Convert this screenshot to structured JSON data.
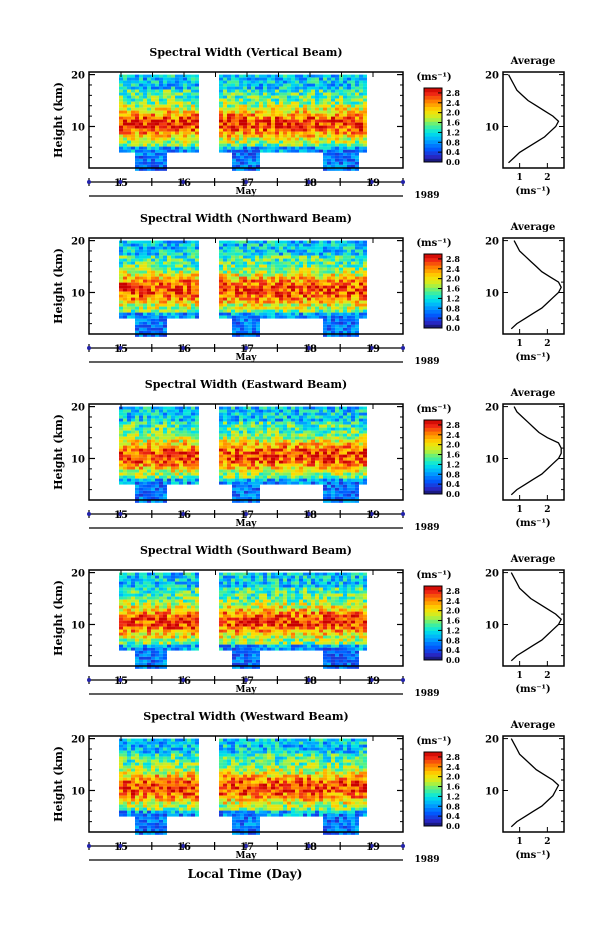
{
  "figure": {
    "xlabel": "Local Time (Day)",
    "cbar_unit": "(ms⁻¹)",
    "avg_unit": "(ms⁻¹)",
    "avg_title": "Average",
    "month": "May",
    "year": "1989"
  },
  "chart_data": [
    {
      "type": "heatmap",
      "title": "Spectral Width (Vertical Beam)",
      "ylabel": "Height (km)",
      "xlabel": "Local Time (Day)",
      "xtick_labels": [
        "15",
        "16",
        "17",
        "18",
        "19"
      ],
      "x_month_label": "May",
      "x_year_label": "1989",
      "yticks": [
        10,
        20
      ],
      "ylim": [
        2,
        20.5
      ],
      "colorbar": {
        "ticks": [
          "0.0",
          "0.4",
          "0.8",
          "1.2",
          "1.6",
          "2.0",
          "2.4",
          "2.8"
        ],
        "range": [
          0.0,
          3.0
        ]
      },
      "average_profile": {
        "xticks": [
          1,
          2
        ],
        "xlim": [
          0.4,
          2.6
        ],
        "height_km": [
          3,
          4,
          5,
          6,
          7,
          8,
          9,
          10,
          11,
          12,
          13,
          14,
          15,
          16,
          17,
          18,
          19,
          20
        ],
        "width_ms": [
          0.6,
          0.8,
          1.0,
          1.3,
          1.6,
          1.9,
          2.1,
          2.3,
          2.4,
          2.2,
          1.9,
          1.6,
          1.3,
          1.1,
          0.9,
          0.8,
          0.7,
          0.6
        ]
      }
    },
    {
      "type": "heatmap",
      "title": "Spectral Width (Northward Beam)",
      "ylabel": "Height (km)",
      "xlabel": "Local Time (Day)",
      "xtick_labels": [
        "15",
        "16",
        "17",
        "18",
        "19"
      ],
      "x_month_label": "May",
      "x_year_label": "1989",
      "yticks": [
        10,
        20
      ],
      "ylim": [
        2,
        20.5
      ],
      "colorbar": {
        "ticks": [
          "0.0",
          "0.4",
          "0.8",
          "1.2",
          "1.6",
          "2.0",
          "2.4",
          "2.8"
        ],
        "range": [
          0.0,
          3.0
        ]
      },
      "average_profile": {
        "xticks": [
          1,
          2
        ],
        "xlim": [
          0.4,
          2.6
        ],
        "height_km": [
          3,
          4,
          5,
          6,
          7,
          8,
          9,
          10,
          11,
          12,
          13,
          14,
          15,
          16,
          17,
          18,
          19,
          20
        ],
        "width_ms": [
          0.7,
          0.9,
          1.2,
          1.5,
          1.8,
          2.0,
          2.2,
          2.4,
          2.5,
          2.4,
          2.1,
          1.8,
          1.6,
          1.4,
          1.2,
          1.0,
          0.9,
          0.8
        ]
      }
    },
    {
      "type": "heatmap",
      "title": "Spectral Width (Eastward Beam)",
      "ylabel": "Height (km)",
      "xlabel": "Local Time (Day)",
      "xtick_labels": [
        "15",
        "16",
        "17",
        "18",
        "19"
      ],
      "x_month_label": "May",
      "x_year_label": "1989",
      "yticks": [
        10,
        20
      ],
      "ylim": [
        2,
        20.5
      ],
      "colorbar": {
        "ticks": [
          "0.0",
          "0.4",
          "0.8",
          "1.2",
          "1.6",
          "2.0",
          "2.4",
          "2.8"
        ],
        "range": [
          0.0,
          3.0
        ]
      },
      "average_profile": {
        "xticks": [
          1,
          2
        ],
        "xlim": [
          0.4,
          2.6
        ],
        "height_km": [
          3,
          4,
          5,
          6,
          7,
          8,
          9,
          10,
          11,
          12,
          13,
          14,
          15,
          16,
          17,
          18,
          19,
          20
        ],
        "width_ms": [
          0.7,
          0.9,
          1.2,
          1.5,
          1.8,
          2.0,
          2.2,
          2.4,
          2.5,
          2.5,
          2.4,
          2.0,
          1.7,
          1.5,
          1.3,
          1.1,
          0.9,
          0.8
        ]
      }
    },
    {
      "type": "heatmap",
      "title": "Spectral Width (Southward Beam)",
      "ylabel": "Height (km)",
      "xlabel": "Local Time (Day)",
      "xtick_labels": [
        "15",
        "16",
        "17",
        "18",
        "19"
      ],
      "x_month_label": "May",
      "x_year_label": "1989",
      "yticks": [
        10,
        20
      ],
      "ylim": [
        2,
        20.5
      ],
      "colorbar": {
        "ticks": [
          "0.0",
          "0.4",
          "0.8",
          "1.2",
          "1.6",
          "2.0",
          "2.4",
          "2.8"
        ],
        "range": [
          0.0,
          3.0
        ]
      },
      "average_profile": {
        "xticks": [
          1,
          2
        ],
        "xlim": [
          0.4,
          2.6
        ],
        "height_km": [
          3,
          4,
          5,
          6,
          7,
          8,
          9,
          10,
          11,
          12,
          13,
          14,
          15,
          16,
          17,
          18,
          19,
          20
        ],
        "width_ms": [
          0.7,
          0.9,
          1.2,
          1.5,
          1.8,
          2.0,
          2.2,
          2.4,
          2.5,
          2.3,
          2.0,
          1.7,
          1.4,
          1.2,
          1.0,
          0.9,
          0.8,
          0.7
        ]
      }
    },
    {
      "type": "heatmap",
      "title": "Spectral Width (Westward Beam)",
      "ylabel": "Height (km)",
      "xlabel": "Local Time (Day)",
      "xtick_labels": [
        "15",
        "16",
        "17",
        "18",
        "19"
      ],
      "x_month_label": "May",
      "x_year_label": "1989",
      "yticks": [
        10,
        20
      ],
      "ylim": [
        2,
        20.5
      ],
      "colorbar": {
        "ticks": [
          "0.0",
          "0.4",
          "0.8",
          "1.2",
          "1.6",
          "2.0",
          "2.4",
          "2.8"
        ],
        "range": [
          0.0,
          3.0
        ]
      },
      "average_profile": {
        "xticks": [
          1,
          2
        ],
        "xlim": [
          0.4,
          2.6
        ],
        "height_km": [
          3,
          4,
          5,
          6,
          7,
          8,
          9,
          10,
          11,
          12,
          13,
          14,
          15,
          16,
          17,
          18,
          19,
          20
        ],
        "width_ms": [
          0.7,
          0.9,
          1.2,
          1.5,
          1.8,
          2.0,
          2.2,
          2.3,
          2.4,
          2.2,
          1.9,
          1.6,
          1.4,
          1.2,
          1.0,
          0.9,
          0.8,
          0.7
        ]
      }
    }
  ]
}
